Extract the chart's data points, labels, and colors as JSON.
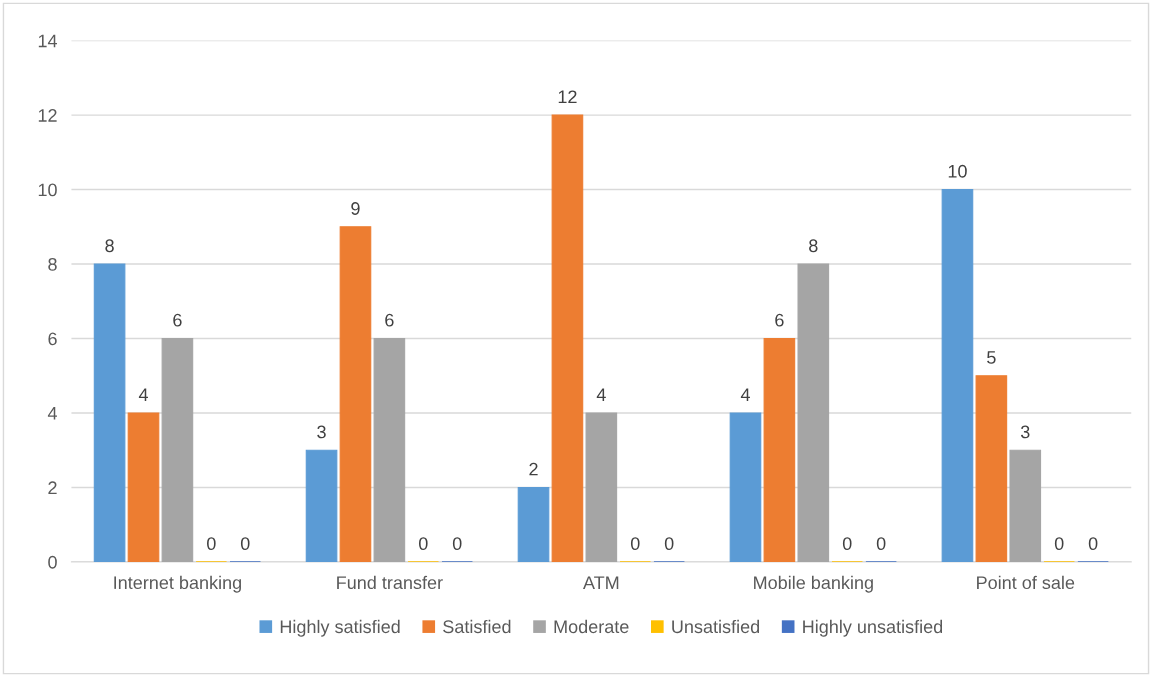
{
  "chart_data": {
    "type": "bar",
    "categories": [
      "Internet banking",
      "Fund transfer",
      "ATM",
      "Mobile banking",
      "Point of sale"
    ],
    "series": [
      {
        "name": "Highly satisfied",
        "color": "#5b9bd5",
        "values": [
          8,
          3,
          2,
          4,
          10
        ]
      },
      {
        "name": "Satisfied",
        "color": "#ed7d31",
        "values": [
          4,
          9,
          12,
          6,
          5
        ]
      },
      {
        "name": "Moderate",
        "color": "#a5a5a5",
        "values": [
          6,
          6,
          4,
          8,
          3
        ]
      },
      {
        "name": "Unsatisfied",
        "color": "#ffc000",
        "values": [
          0,
          0,
          0,
          0,
          0
        ]
      },
      {
        "name": "Highly unsatisfied",
        "color": "#4472c4",
        "values": [
          0,
          0,
          0,
          0,
          0
        ]
      }
    ],
    "ylim": [
      0,
      14
    ],
    "yticks": [
      0,
      2,
      4,
      6,
      8,
      10,
      12,
      14
    ],
    "grid": "y",
    "legend": "bottom",
    "data_labels": true
  }
}
